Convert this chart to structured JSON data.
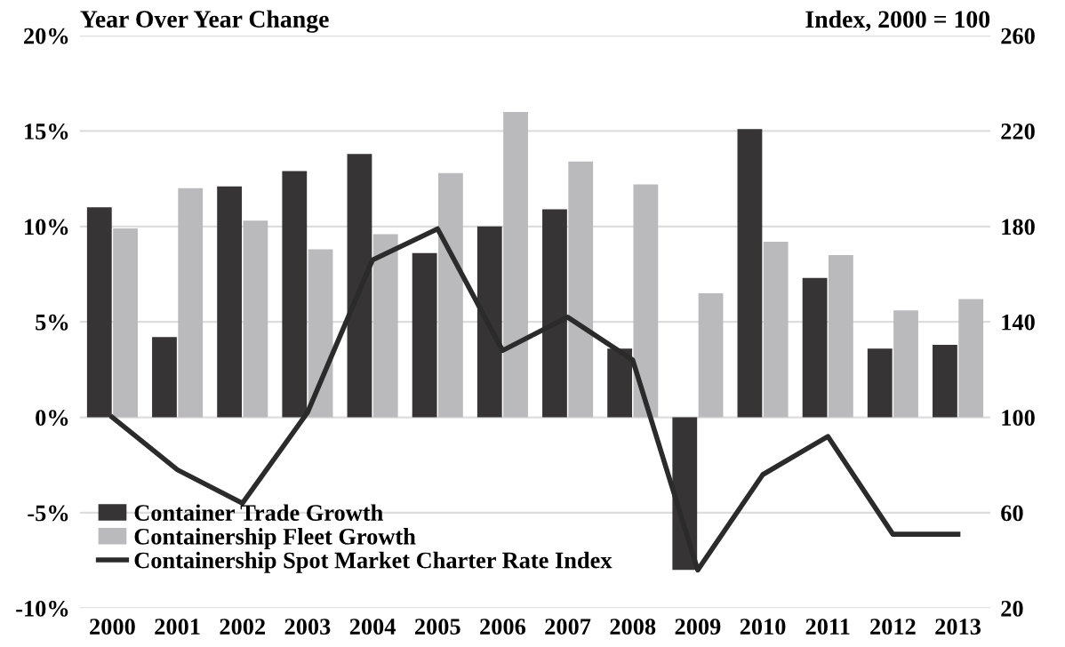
{
  "chart_data": {
    "type": "bar",
    "categories": [
      "2000",
      "2001",
      "2002",
      "2003",
      "2004",
      "2005",
      "2006",
      "2007",
      "2008",
      "2009",
      "2010",
      "2011",
      "2012",
      "2013"
    ],
    "series": [
      {
        "name": "Container Trade Growth",
        "color": "#363434",
        "values": [
          11.0,
          4.2,
          12.1,
          12.9,
          13.8,
          8.6,
          10.0,
          10.9,
          3.6,
          -8.0,
          15.1,
          7.3,
          3.6,
          3.8
        ]
      },
      {
        "name": "Containership Fleet Growth",
        "color": "#bababc",
        "values": [
          9.9,
          12.0,
          10.3,
          8.8,
          9.6,
          12.8,
          16.0,
          13.4,
          12.2,
          6.5,
          9.2,
          8.5,
          5.6,
          6.2
        ]
      },
      {
        "name": "Containership Spot Market Charter Rate Index",
        "type": "line",
        "axis": "y2",
        "color": "#2b2b2b",
        "values": [
          100,
          78,
          64,
          102,
          166,
          179,
          128,
          142,
          124,
          36,
          76,
          92,
          51,
          51
        ]
      }
    ],
    "ylabel": "Year Over Year Change",
    "y2label": "Index, 2000 = 100",
    "ylim": [
      -10,
      20
    ],
    "yticks": [
      {
        "value": -10,
        "label": "-10%"
      },
      {
        "value": -5,
        "label": "-5%"
      },
      {
        "value": 0,
        "label": "0%"
      },
      {
        "value": 5,
        "label": "5%"
      },
      {
        "value": 10,
        "label": "10%"
      },
      {
        "value": 15,
        "label": "15%"
      },
      {
        "value": 20,
        "label": "20%"
      }
    ],
    "y2lim": [
      20,
      260
    ],
    "y2ticks": [
      20,
      60,
      100,
      140,
      180,
      220,
      260
    ],
    "grid": "y",
    "legend": "bottom left",
    "marker": "none",
    "line_style": "solid"
  }
}
